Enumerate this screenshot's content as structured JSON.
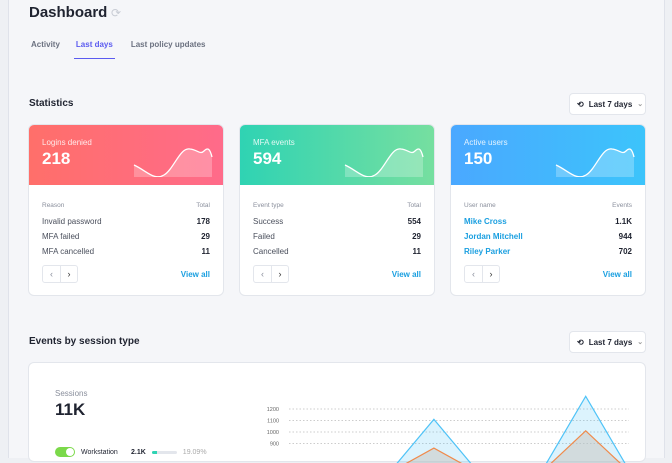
{
  "header": {
    "title": "Dashboard",
    "refresh_icon": "refresh-icon"
  },
  "tabs": [
    {
      "label": "Activity"
    },
    {
      "label": "Last days",
      "active": true
    },
    {
      "label": "Last policy updates"
    }
  ],
  "statistics": {
    "title": "Statistics",
    "range": "Last 7 days",
    "cards": [
      {
        "label": "Logins denied",
        "value": "218",
        "colors": [
          "#ff6f6a",
          "#ff6b8a"
        ],
        "col1": "Reason",
        "col2": "Total",
        "rows": [
          {
            "name": "Invalid password",
            "value": "178"
          },
          {
            "name": "MFA failed",
            "value": "29"
          },
          {
            "name": "MFA cancelled",
            "value": "11"
          }
        ],
        "view_all": "View all"
      },
      {
        "label": "MFA events",
        "value": "594",
        "colors": [
          "#2fd3b3",
          "#76dfa0"
        ],
        "col1": "Event type",
        "col2": "Total",
        "rows": [
          {
            "name": "Success",
            "value": "554"
          },
          {
            "name": "Failed",
            "value": "29"
          },
          {
            "name": "Cancelled",
            "value": "11"
          }
        ],
        "view_all": "View all"
      },
      {
        "label": "Active users",
        "value": "150",
        "colors": [
          "#4aa8ff",
          "#3cc4fb"
        ],
        "col1": "User name",
        "col2": "Events",
        "rows": [
          {
            "name": "Mike Cross",
            "value": "1.1K"
          },
          {
            "name": "Jordan Mitchell",
            "value": "944"
          },
          {
            "name": "Riley Parker",
            "value": "702"
          }
        ],
        "view_all": "View all"
      }
    ]
  },
  "events": {
    "title": "Events by session type",
    "range": "Last 7 days",
    "sessions_label": "Sessions",
    "sessions_value": "11K",
    "legend": [
      {
        "name": "Workstation",
        "value": "2.1K",
        "percent": "19.09%",
        "enabled": true,
        "fill": 0.19
      }
    ],
    "chart_data": {
      "type": "area",
      "yticks": [
        900,
        1000,
        1100,
        1200
      ],
      "series": [
        {
          "color": "#4fc3f7",
          "points": [
            [
              0.42,
              1110
            ],
            [
              0.86,
              1310
            ]
          ]
        },
        {
          "color": "#f08a4b",
          "points": [
            [
              0.42,
              860
            ],
            [
              0.86,
              1010
            ]
          ]
        }
      ]
    }
  }
}
